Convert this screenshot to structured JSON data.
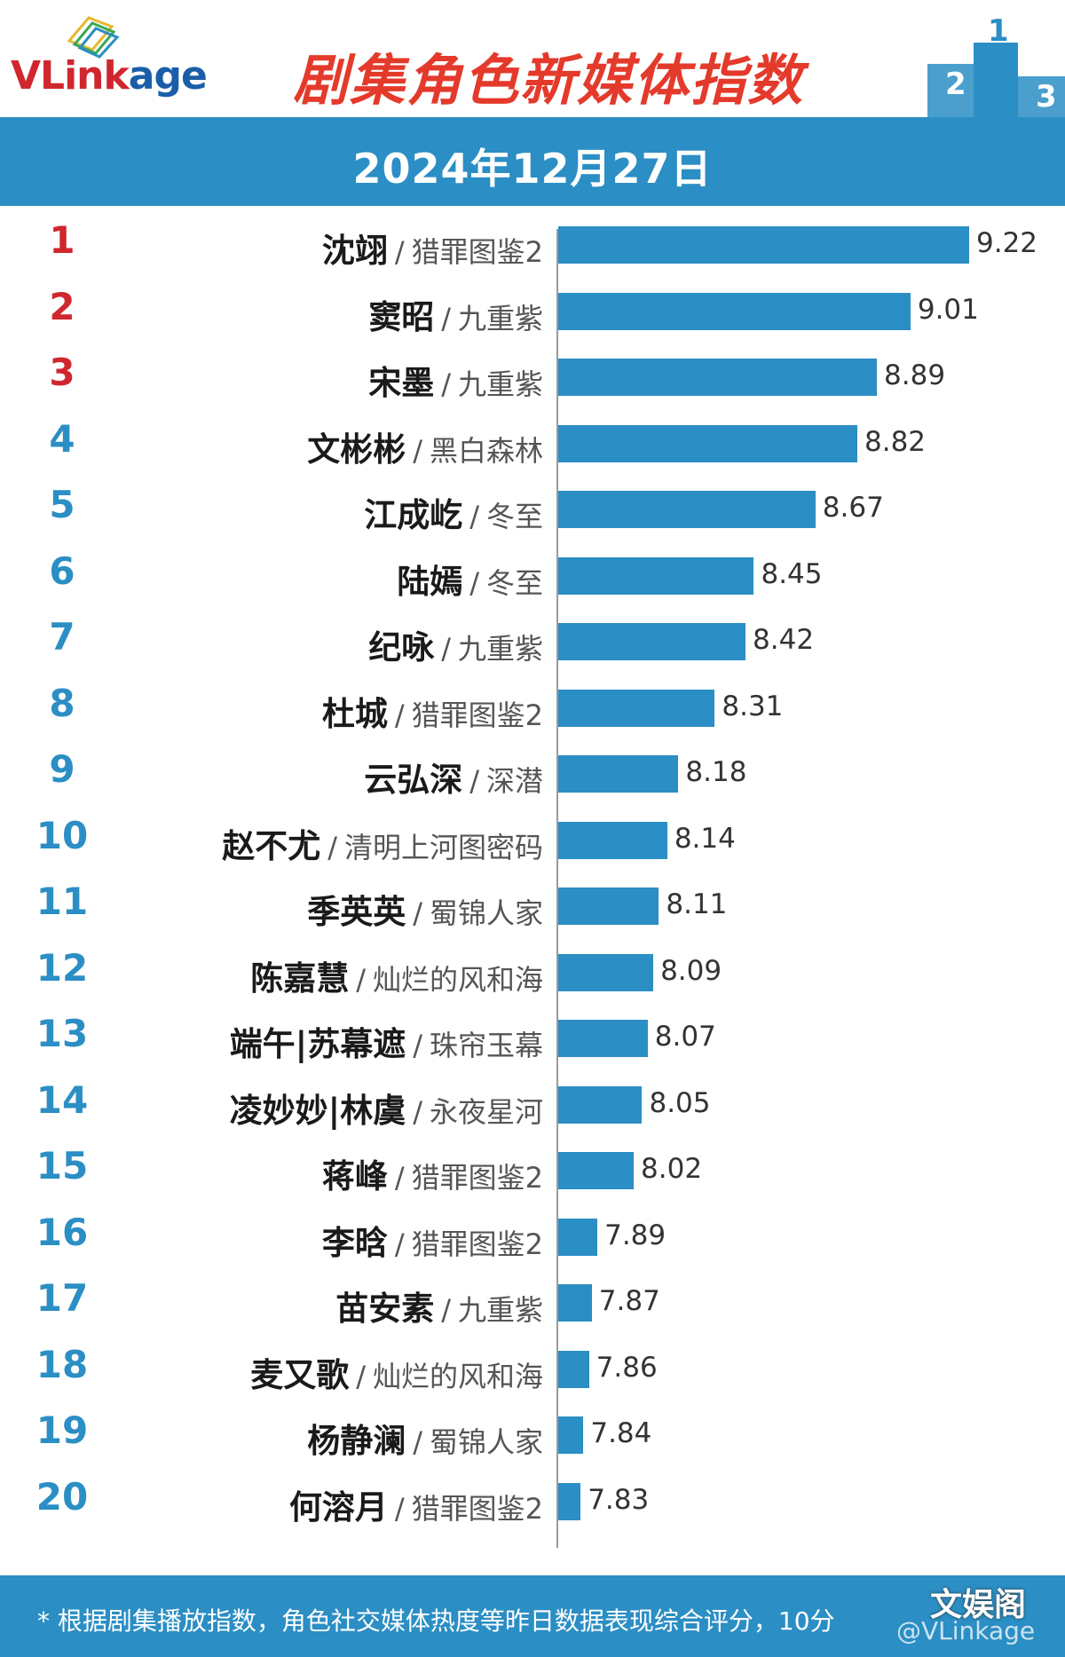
{
  "header": {
    "logo_text_v": "VLink",
    "logo_text_age": "age",
    "title": "剧集角色新媒体指数",
    "podium_numbers": [
      "2",
      "1",
      "3"
    ]
  },
  "date": "2024年12月27日",
  "colors": {
    "bar": "#2b8ec4",
    "rank_top3": "#d0262e",
    "rank_other": "#2b8ec4",
    "title": "#e43a2c"
  },
  "chart_data": {
    "type": "bar",
    "orientation": "horizontal",
    "title": "剧集角色新媒体指数",
    "subtitle": "2024年12月27日",
    "xlim": [
      0,
      10
    ],
    "grid": false,
    "items": [
      {
        "rank": "1",
        "character": "沈翊",
        "drama": "猎罪图鉴2",
        "value": 9.22
      },
      {
        "rank": "2",
        "character": "窦昭",
        "drama": "九重紫",
        "value": 9.01
      },
      {
        "rank": "3",
        "character": "宋墨",
        "drama": "九重紫",
        "value": 8.89
      },
      {
        "rank": "4",
        "character": "文彬彬",
        "drama": "黑白森林",
        "value": 8.82
      },
      {
        "rank": "5",
        "character": "江成屹",
        "drama": "冬至",
        "value": 8.67
      },
      {
        "rank": "6",
        "character": "陆嫣",
        "drama": "冬至",
        "value": 8.45
      },
      {
        "rank": "7",
        "character": "纪咏",
        "drama": "九重紫",
        "value": 8.42
      },
      {
        "rank": "8",
        "character": "杜城",
        "drama": "猎罪图鉴2",
        "value": 8.31
      },
      {
        "rank": "9",
        "character": "云弘深",
        "drama": "深潜",
        "value": 8.18
      },
      {
        "rank": "10",
        "character": "赵不尤",
        "drama": "清明上河图密码",
        "value": 8.14
      },
      {
        "rank": "11",
        "character": "季英英",
        "drama": "蜀锦人家",
        "value": 8.11
      },
      {
        "rank": "12",
        "character": "陈嘉慧",
        "drama": "灿烂的风和海",
        "value": 8.09
      },
      {
        "rank": "13",
        "character": "端午|苏幕遮",
        "drama": "珠帘玉幕",
        "value": 8.07
      },
      {
        "rank": "14",
        "character": "凌妙妙|林虞",
        "drama": "永夜星河",
        "value": 8.05
      },
      {
        "rank": "15",
        "character": "蒋峰",
        "drama": "猎罪图鉴2",
        "value": 8.02
      },
      {
        "rank": "16",
        "character": "李晗",
        "drama": "猎罪图鉴2",
        "value": 7.89
      },
      {
        "rank": "17",
        "character": "苗安素",
        "drama": "九重紫",
        "value": 7.87
      },
      {
        "rank": "18",
        "character": "麦又歌",
        "drama": "灿烂的风和海",
        "value": 7.86
      },
      {
        "rank": "19",
        "character": "杨静澜",
        "drama": "蜀锦人家",
        "value": 7.84
      },
      {
        "rank": "20",
        "character": "何溶月",
        "drama": "猎罪图鉴2",
        "value": 7.83
      }
    ]
  },
  "footer": {
    "note": "* 根据剧集播放指数，角色社交媒体热度等昨日数据表现综合评分，10分",
    "weibo_watermark": "@VLinkage",
    "site_watermark": "文娱阁"
  }
}
